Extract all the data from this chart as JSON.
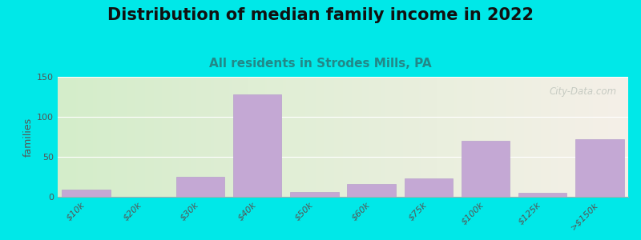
{
  "title": "Distribution of median family income in 2022",
  "subtitle": "All residents in Strodes Mills, PA",
  "categories": [
    "$10k",
    "$20k",
    "$30k",
    "$40k",
    "$50k",
    "$60k",
    "$75k",
    "$100k",
    "$125k",
    ">$150k"
  ],
  "values": [
    9,
    0,
    25,
    128,
    6,
    16,
    23,
    70,
    5,
    72
  ],
  "bar_color": "#c4a8d4",
  "bar_edgecolor": "#b8a0cc",
  "ylabel": "families",
  "ylim": [
    0,
    150
  ],
  "yticks": [
    0,
    50,
    100,
    150
  ],
  "bg_outer": "#00e8e8",
  "bg_plot_left": "#d4edca",
  "bg_plot_right": "#f5f0e8",
  "title_fontsize": 15,
  "subtitle_fontsize": 11,
  "watermark": "City-Data.com",
  "watermark_color": "#b0b8b0"
}
